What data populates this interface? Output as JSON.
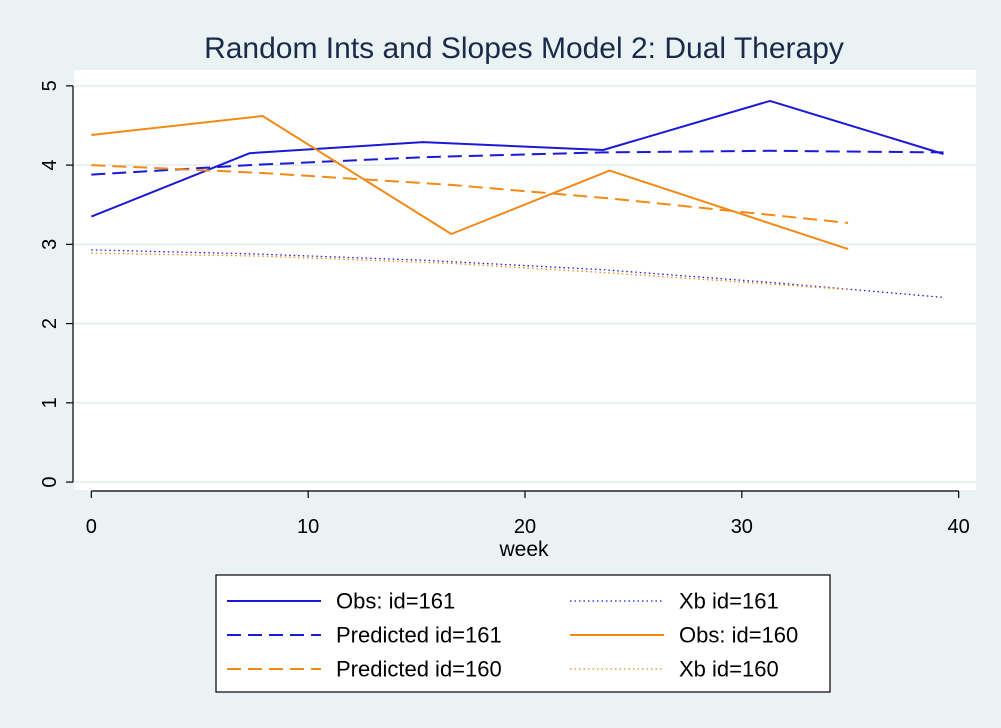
{
  "chart_data": {
    "type": "line",
    "title": "Random Ints and Slopes Model 2: Dual Therapy",
    "xlabel": "week",
    "ylabel": "",
    "xlim": [
      -0.8,
      40.8
    ],
    "ylim": [
      -0.1,
      5.2
    ],
    "x_ticks": [
      0,
      10,
      20,
      30,
      40
    ],
    "y_ticks": [
      0,
      1,
      2,
      3,
      4,
      5
    ],
    "grid": true,
    "legend_position": "bottom",
    "series": [
      {
        "name": "Obs: id=161",
        "color": "#1a1ad6",
        "style": "solid",
        "x": [
          0,
          7.3,
          15.3,
          23.6,
          31.3,
          39.3
        ],
        "y": [
          3.35,
          4.15,
          4.29,
          4.19,
          4.81,
          4.14
        ]
      },
      {
        "name": "Predicted id=161",
        "color": "#1a1ad6",
        "style": "dashed",
        "x": [
          0,
          7.3,
          15.3,
          23.6,
          31.3,
          39.3
        ],
        "y": [
          3.88,
          4.0,
          4.1,
          4.16,
          4.18,
          4.16
        ]
      },
      {
        "name": "Predicted id=160",
        "color": "#f28a17",
        "style": "dashed",
        "x": [
          0,
          7.9,
          16.6,
          23.9,
          34.9
        ],
        "y": [
          4.0,
          3.9,
          3.75,
          3.58,
          3.27
        ]
      },
      {
        "name": "Xb id=161",
        "color": "#1a1ad6",
        "style": "dotted",
        "x": [
          0,
          7.3,
          15.3,
          23.6,
          31.3,
          39.3
        ],
        "y": [
          2.93,
          2.88,
          2.8,
          2.68,
          2.52,
          2.33
        ]
      },
      {
        "name": "Obs: id=160",
        "color": "#f28a17",
        "style": "solid",
        "x": [
          0,
          7.9,
          16.6,
          23.9,
          34.9
        ],
        "y": [
          4.38,
          4.62,
          3.13,
          3.93,
          2.94
        ]
      },
      {
        "name": "Xb id=160",
        "color": "#f28a17",
        "style": "dotted",
        "x": [
          0,
          7.9,
          16.6,
          23.9,
          34.9
        ],
        "y": [
          2.89,
          2.85,
          2.76,
          2.64,
          2.43
        ]
      }
    ],
    "legend_columns": [
      [
        "Obs: id=161",
        "Predicted id=161",
        "Predicted id=160"
      ],
      [
        "Xb id=161",
        "Obs: id=160",
        "Xb id=160"
      ]
    ]
  }
}
